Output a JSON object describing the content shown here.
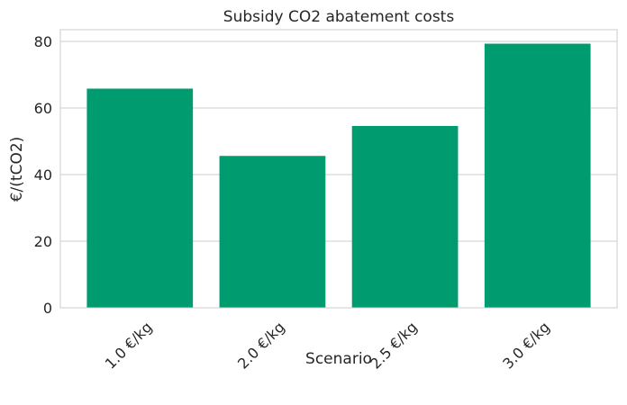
{
  "chart_data": {
    "type": "bar",
    "title": "Subsidy CO2 abatement costs",
    "xlabel": "Scenario",
    "ylabel": "€/(tCO2)",
    "categories": [
      "1.0 €/kg",
      "2.0 €/kg",
      "2.5 €/kg",
      "3.0 €/kg"
    ],
    "values": [
      65.8,
      45.6,
      54.6,
      79.3
    ],
    "ylim": [
      0,
      83.5
    ],
    "yticks": [
      0,
      20,
      40,
      60,
      80
    ],
    "grid": "y",
    "legend": "none",
    "bar_color": "#009b6e",
    "grid_color": "#cccccc",
    "axis_color": "#cccccc"
  }
}
